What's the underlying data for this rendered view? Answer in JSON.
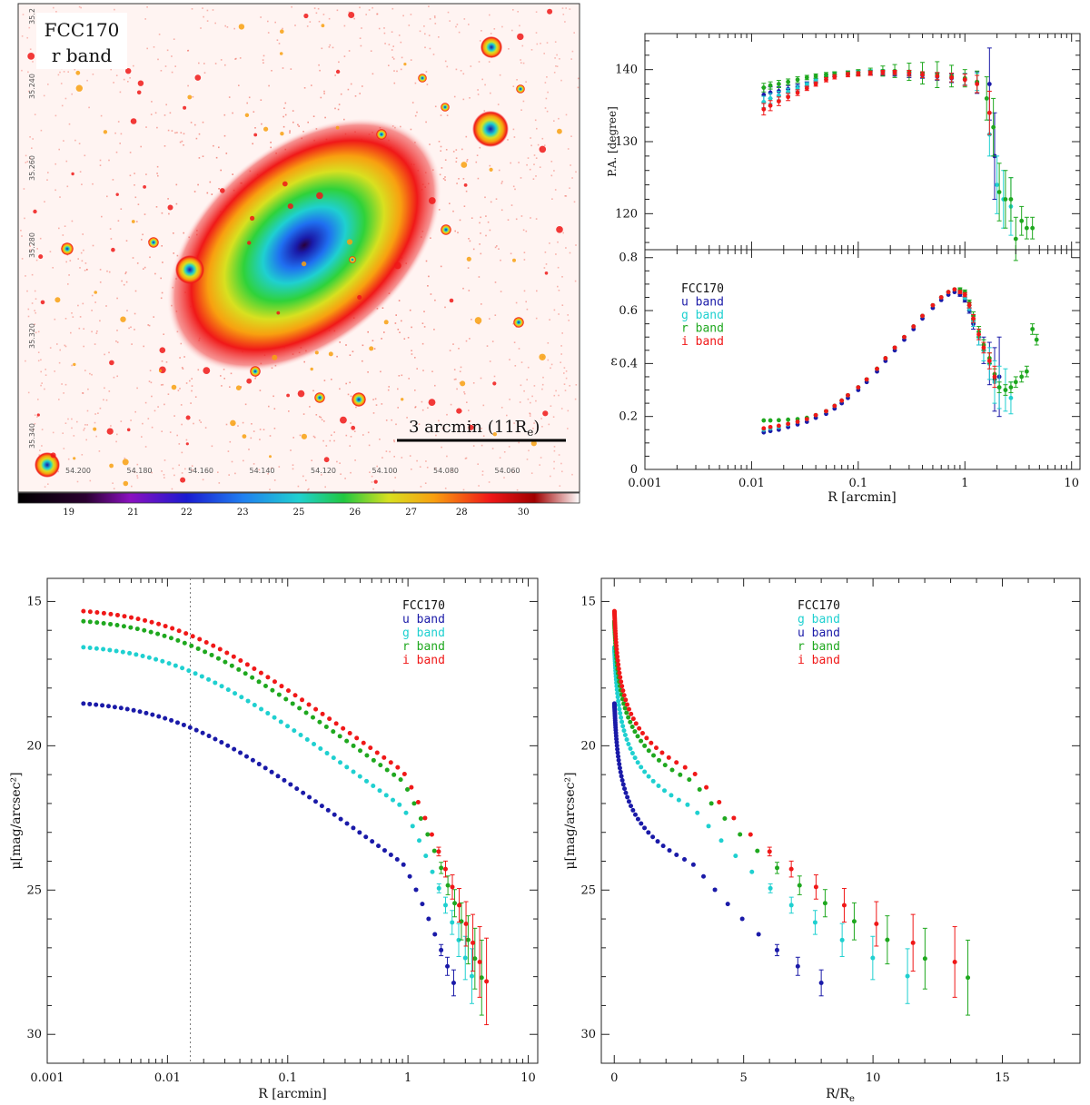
{
  "colors": {
    "u": "#1a1aa8",
    "g": "#1fd0d0",
    "r": "#1fa81f",
    "i": "#f01818"
  },
  "image_panel": {
    "label_line1": "FCC170",
    "label_line2": "r band",
    "scale_bar_text": "3 arcmin (11R",
    "scale_bar_sub": "e",
    "scale_bar_close": ")",
    "colorbar_ticks": [
      "19",
      "21",
      "22",
      "23",
      "25",
      "26",
      "27",
      "28",
      "30"
    ],
    "ra_ticks": [
      "54.200",
      "54.180",
      "54.160",
      "54.140",
      "54.120",
      "54.100",
      "54.080",
      "54.060"
    ],
    "dec_ticks": [
      "35.2",
      "35.240",
      "35.260",
      "35.280",
      "35.320",
      "35.340"
    ]
  },
  "chart_data": [
    {
      "id": "pa",
      "type": "scatter",
      "ylabel": "P.A. [degree]",
      "xscale": "log",
      "xlim": [
        0.001,
        12
      ],
      "ylim": [
        115,
        145
      ],
      "yticks": [
        120,
        130,
        140
      ],
      "ytick_labels": [
        "120",
        "130",
        "140"
      ],
      "series": [
        {
          "name": "u band",
          "band": "u",
          "x": [
            0.013,
            0.015,
            0.018,
            0.022,
            0.027,
            0.033,
            0.04,
            0.05,
            0.06,
            0.08,
            0.1,
            0.13,
            0.17,
            0.22,
            0.3,
            0.4,
            0.55,
            0.75,
            1.0,
            1.3,
            1.7,
            1.9
          ],
          "y": [
            136.5,
            136.8,
            137.0,
            137.3,
            137.6,
            138.0,
            138.5,
            139.0,
            139.3,
            139.5,
            139.6,
            139.6,
            139.5,
            139.4,
            139.3,
            139.2,
            139.0,
            138.8,
            138.6,
            138.2,
            138.0,
            128.0
          ],
          "err": [
            1.0,
            0.8,
            0.6,
            0.5,
            0.4,
            0.3,
            0.3,
            0.3,
            0.3,
            0.3,
            0.3,
            0.3,
            0.3,
            0.3,
            0.4,
            0.4,
            0.5,
            0.6,
            0.8,
            1.5,
            5.0,
            6.0
          ]
        },
        {
          "name": "g band",
          "band": "g",
          "x": [
            0.013,
            0.015,
            0.018,
            0.022,
            0.027,
            0.033,
            0.04,
            0.05,
            0.06,
            0.08,
            0.1,
            0.13,
            0.17,
            0.22,
            0.3,
            0.4,
            0.55,
            0.75,
            1.0,
            1.3,
            1.7,
            2.0,
            2.3,
            2.7
          ],
          "y": [
            135.5,
            136.0,
            136.4,
            136.9,
            137.4,
            137.9,
            138.4,
            139.0,
            139.3,
            139.5,
            139.6,
            139.7,
            139.7,
            139.6,
            139.5,
            139.3,
            139.1,
            138.9,
            138.7,
            138.3,
            131.0,
            124.0,
            122.0,
            121.0
          ],
          "err": [
            0.8,
            0.7,
            0.6,
            0.5,
            0.4,
            0.3,
            0.3,
            0.3,
            0.3,
            0.3,
            0.3,
            0.3,
            0.3,
            0.3,
            0.4,
            0.4,
            0.5,
            0.6,
            0.8,
            1.2,
            3.0,
            4.0,
            4.0,
            4.0
          ]
        },
        {
          "name": "r band",
          "band": "r",
          "x": [
            0.013,
            0.015,
            0.018,
            0.022,
            0.027,
            0.033,
            0.04,
            0.05,
            0.06,
            0.08,
            0.1,
            0.13,
            0.17,
            0.22,
            0.3,
            0.4,
            0.55,
            0.75,
            1.0,
            1.3,
            1.6,
            1.85,
            2.1,
            2.4,
            2.7,
            3.0,
            3.4,
            3.8,
            4.3
          ],
          "y": [
            137.5,
            137.8,
            138.0,
            138.3,
            138.6,
            138.9,
            139.1,
            139.3,
            139.4,
            139.5,
            139.6,
            139.7,
            139.8,
            139.8,
            139.7,
            139.5,
            139.3,
            139.1,
            138.8,
            138.3,
            136.0,
            132.0,
            123.0,
            122.0,
            122.0,
            116.5,
            119.0,
            118.0,
            118.0
          ],
          "err": [
            0.6,
            0.5,
            0.5,
            0.4,
            0.4,
            0.3,
            0.3,
            0.3,
            0.3,
            0.3,
            0.4,
            0.5,
            0.7,
            0.9,
            1.2,
            1.5,
            1.8,
            1.5,
            1.2,
            1.5,
            3.0,
            4.0,
            4.0,
            4.0,
            3.0,
            3.0,
            2.0,
            1.5,
            1.5
          ]
        },
        {
          "name": "i band",
          "band": "i",
          "x": [
            0.013,
            0.015,
            0.018,
            0.022,
            0.027,
            0.033,
            0.04,
            0.05,
            0.06,
            0.08,
            0.1,
            0.13,
            0.17,
            0.22,
            0.3,
            0.4,
            0.55,
            0.75,
            1.0,
            1.3,
            1.7
          ],
          "y": [
            134.5,
            135.0,
            135.6,
            136.2,
            136.8,
            137.4,
            138.0,
            138.6,
            139.0,
            139.3,
            139.4,
            139.5,
            139.6,
            139.6,
            139.5,
            139.3,
            139.1,
            138.9,
            138.6,
            138.0,
            134.0
          ],
          "err": [
            0.8,
            0.7,
            0.6,
            0.5,
            0.4,
            0.3,
            0.3,
            0.3,
            0.3,
            0.3,
            0.3,
            0.3,
            0.3,
            0.3,
            0.4,
            0.4,
            0.5,
            0.6,
            0.8,
            1.2,
            3.0
          ]
        }
      ]
    },
    {
      "id": "ell",
      "type": "scatter",
      "ylabel": "ε",
      "xlabel": "R [arcmin]",
      "xscale": "log",
      "xlim": [
        0.001,
        12
      ],
      "ylim": [
        0,
        0.83
      ],
      "xticks": [
        0.001,
        0.01,
        0.1,
        1,
        10
      ],
      "xtick_labels": [
        "0.001",
        "0.01",
        "0.1",
        "1",
        "10"
      ],
      "yticks": [
        0,
        0.2,
        0.4,
        0.6,
        0.8
      ],
      "ytick_labels": [
        "0",
        "0.2",
        "0.4",
        "0.6",
        "0.8"
      ],
      "legend": {
        "title": "FCC170",
        "entries": [
          "u band",
          "g band",
          "r band",
          "i band"
        ]
      },
      "series": [
        {
          "name": "u band",
          "band": "u",
          "x": [
            0.013,
            0.015,
            0.018,
            0.022,
            0.027,
            0.033,
            0.04,
            0.05,
            0.06,
            0.07,
            0.08,
            0.1,
            0.12,
            0.15,
            0.18,
            0.22,
            0.27,
            0.33,
            0.4,
            0.5,
            0.6,
            0.7,
            0.8,
            0.9,
            1.0,
            1.1,
            1.2,
            1.35,
            1.5,
            1.7,
            1.9,
            2.1
          ],
          "y": [
            0.14,
            0.145,
            0.15,
            0.16,
            0.17,
            0.18,
            0.195,
            0.21,
            0.23,
            0.25,
            0.27,
            0.3,
            0.33,
            0.37,
            0.41,
            0.45,
            0.49,
            0.53,
            0.57,
            0.61,
            0.64,
            0.66,
            0.67,
            0.66,
            0.64,
            0.6,
            0.55,
            0.5,
            0.45,
            0.4,
            0.34,
            0.35
          ],
          "err": [
            0.005,
            0.005,
            0.005,
            0.005,
            0.005,
            0.005,
            0.005,
            0.005,
            0.005,
            0.005,
            0.005,
            0.005,
            0.005,
            0.005,
            0.005,
            0.005,
            0.005,
            0.005,
            0.005,
            0.005,
            0.005,
            0.005,
            0.005,
            0.006,
            0.008,
            0.01,
            0.02,
            0.03,
            0.05,
            0.08,
            0.12,
            0.15
          ]
        },
        {
          "name": "g band",
          "band": "g",
          "x": [
            0.013,
            0.015,
            0.018,
            0.022,
            0.027,
            0.033,
            0.04,
            0.05,
            0.06,
            0.07,
            0.08,
            0.1,
            0.12,
            0.15,
            0.18,
            0.22,
            0.27,
            0.33,
            0.4,
            0.5,
            0.6,
            0.7,
            0.8,
            0.9,
            1.0,
            1.1,
            1.2,
            1.35,
            1.5,
            1.7,
            1.9,
            2.1,
            2.4,
            2.7
          ],
          "y": [
            0.15,
            0.155,
            0.16,
            0.17,
            0.18,
            0.19,
            0.205,
            0.22,
            0.24,
            0.26,
            0.28,
            0.31,
            0.34,
            0.38,
            0.42,
            0.46,
            0.5,
            0.54,
            0.58,
            0.62,
            0.65,
            0.67,
            0.68,
            0.67,
            0.65,
            0.61,
            0.56,
            0.5,
            0.45,
            0.4,
            0.33,
            0.31,
            0.3,
            0.27
          ],
          "err": [
            0.005,
            0.005,
            0.005,
            0.005,
            0.005,
            0.005,
            0.005,
            0.005,
            0.005,
            0.005,
            0.005,
            0.005,
            0.005,
            0.005,
            0.005,
            0.005,
            0.005,
            0.005,
            0.005,
            0.005,
            0.005,
            0.005,
            0.005,
            0.006,
            0.008,
            0.01,
            0.02,
            0.03,
            0.04,
            0.06,
            0.08,
            0.08,
            0.08,
            0.06
          ]
        },
        {
          "name": "r band",
          "band": "r",
          "x": [
            0.013,
            0.015,
            0.018,
            0.022,
            0.027,
            0.033,
            0.04,
            0.05,
            0.06,
            0.07,
            0.08,
            0.1,
            0.12,
            0.15,
            0.18,
            0.22,
            0.27,
            0.33,
            0.4,
            0.5,
            0.6,
            0.7,
            0.8,
            0.9,
            1.0,
            1.1,
            1.2,
            1.35,
            1.5,
            1.7,
            1.9,
            2.1,
            2.4,
            2.7,
            3.0,
            3.4,
            3.8,
            4.3,
            4.7
          ],
          "y": [
            0.185,
            0.185,
            0.186,
            0.188,
            0.19,
            0.195,
            0.205,
            0.22,
            0.24,
            0.26,
            0.28,
            0.31,
            0.34,
            0.38,
            0.42,
            0.46,
            0.5,
            0.54,
            0.58,
            0.62,
            0.65,
            0.67,
            0.68,
            0.68,
            0.67,
            0.63,
            0.58,
            0.52,
            0.47,
            0.42,
            0.36,
            0.31,
            0.3,
            0.31,
            0.33,
            0.35,
            0.37,
            0.53,
            0.49
          ],
          "err": [
            0.005,
            0.005,
            0.005,
            0.005,
            0.005,
            0.005,
            0.005,
            0.005,
            0.005,
            0.005,
            0.005,
            0.005,
            0.005,
            0.005,
            0.005,
            0.005,
            0.005,
            0.005,
            0.005,
            0.005,
            0.005,
            0.005,
            0.005,
            0.006,
            0.008,
            0.01,
            0.015,
            0.02,
            0.02,
            0.02,
            0.02,
            0.02,
            0.02,
            0.02,
            0.02,
            0.02,
            0.02,
            0.02,
            0.02
          ]
        },
        {
          "name": "i band",
          "band": "i",
          "x": [
            0.013,
            0.015,
            0.018,
            0.022,
            0.027,
            0.033,
            0.04,
            0.05,
            0.06,
            0.07,
            0.08,
            0.1,
            0.12,
            0.15,
            0.18,
            0.22,
            0.27,
            0.33,
            0.4,
            0.5,
            0.6,
            0.7,
            0.8,
            0.9,
            1.0,
            1.1,
            1.2,
            1.35,
            1.5,
            1.7,
            1.9
          ],
          "y": [
            0.155,
            0.16,
            0.165,
            0.172,
            0.18,
            0.19,
            0.205,
            0.22,
            0.24,
            0.26,
            0.28,
            0.31,
            0.34,
            0.38,
            0.42,
            0.46,
            0.5,
            0.54,
            0.58,
            0.62,
            0.65,
            0.67,
            0.68,
            0.67,
            0.66,
            0.62,
            0.57,
            0.51,
            0.46,
            0.41,
            0.35
          ],
          "err": [
            0.005,
            0.005,
            0.005,
            0.005,
            0.005,
            0.005,
            0.005,
            0.005,
            0.005,
            0.005,
            0.005,
            0.005,
            0.005,
            0.005,
            0.005,
            0.005,
            0.005,
            0.005,
            0.005,
            0.005,
            0.005,
            0.005,
            0.005,
            0.006,
            0.008,
            0.01,
            0.015,
            0.02,
            0.02,
            0.03,
            0.04
          ]
        }
      ]
    },
    {
      "id": "sb_log",
      "type": "scatter",
      "ylabel": "μ[mag/arcsec²]",
      "xlabel": "R [arcmin]",
      "xscale": "log",
      "xlim": [
        0.001,
        12
      ],
      "ylim": [
        31,
        14.2
      ],
      "xticks": [
        0.001,
        0.01,
        0.1,
        1,
        10
      ],
      "xtick_labels": [
        "0.001",
        "0.01",
        "0.1",
        "1",
        "10"
      ],
      "yticks": [
        15,
        20,
        25,
        30
      ],
      "ytick_labels": [
        "15",
        "20",
        "25",
        "30"
      ],
      "vline_x": 0.0155,
      "legend": {
        "title": "FCC170",
        "entries": [
          "u band",
          "g band",
          "r band",
          "i band"
        ]
      },
      "profile": {
        "x_start": 0.002,
        "x_end": 4.5,
        "n": 60,
        "central": {
          "u": 18.4,
          "g": 16.45,
          "r": 15.55,
          "i": 15.2
        },
        "faint": {
          "u": 28.3,
          "g": 28.7,
          "r": 29.1,
          "i": 28.9
        },
        "stop": {
          "u": 2.4,
          "g": 3.4,
          "r": 4.1,
          "i": 4.5
        }
      }
    },
    {
      "id": "sb_lin",
      "type": "scatter",
      "ylabel": "μ[mag/arcsec²]",
      "xlabel": "R/R",
      "xlabel_sub": "e",
      "xscale": "linear",
      "xlim": [
        -0.5,
        18
      ],
      "ylim": [
        31,
        14.2
      ],
      "xticks": [
        0,
        5,
        10,
        15
      ],
      "xtick_labels": [
        "0",
        "5",
        "10",
        "15"
      ],
      "yticks": [
        15,
        20,
        25,
        30
      ],
      "ytick_labels": [
        "15",
        "20",
        "25",
        "30"
      ],
      "legend": {
        "title": "FCC170",
        "entries": [
          "g band",
          "u band",
          "r band",
          "i band"
        ]
      },
      "re_arcmin": 0.3
    }
  ]
}
